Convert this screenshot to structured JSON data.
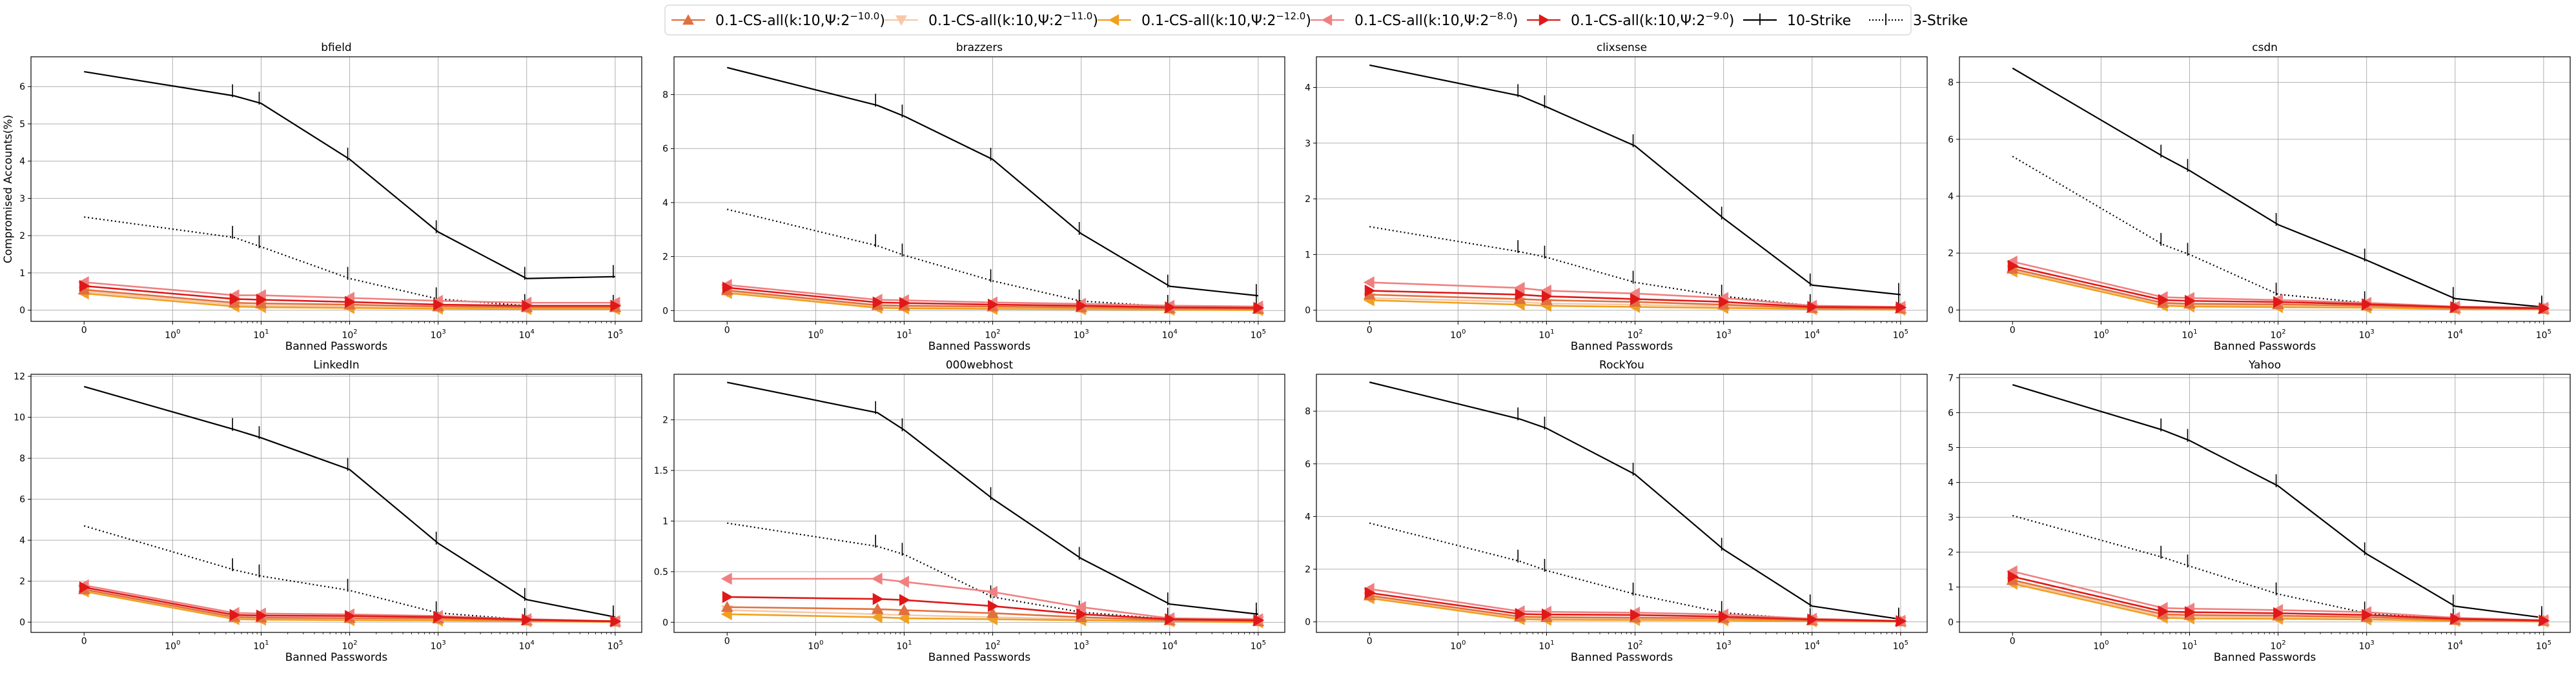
{
  "colors": {
    "cs_m10": "#e07040",
    "cs_m11": "#f7c8a8",
    "cs_m12": "#f0a020",
    "cs_m8": "#f08080",
    "cs_m9": "#e01818",
    "ten_strike": "#000000",
    "three_strike": "#000000",
    "grid": "#b0b0b0"
  },
  "legend": [
    {
      "key": "cs_m10",
      "label_pre": "0.1-CS-all(k:10,Ψ:2",
      "exp": "−10.0",
      "label_post": ")",
      "marker": "triangle-up",
      "line": "solid"
    },
    {
      "key": "cs_m11",
      "label_pre": "0.1-CS-all(k:10,Ψ:2",
      "exp": "−11.0",
      "label_post": ")",
      "marker": "triangle-down",
      "line": "solid"
    },
    {
      "key": "cs_m12",
      "label_pre": "0.1-CS-all(k:10,Ψ:2",
      "exp": "−12.0",
      "label_post": ")",
      "marker": "triangle-left",
      "line": "solid"
    },
    {
      "key": "cs_m8",
      "label_pre": "0.1-CS-all(k:10,Ψ:2",
      "exp": "−8.0",
      "label_post": ")",
      "marker": "triangle-left",
      "line": "solid"
    },
    {
      "key": "cs_m9",
      "label_pre": "0.1-CS-all(k:10,Ψ:2",
      "exp": "−9.0",
      "label_post": ")",
      "marker": "triangle-right",
      "line": "solid"
    },
    {
      "key": "ten_strike",
      "label_pre": "10-Strike",
      "exp": "",
      "label_post": "",
      "marker": "errbar",
      "line": "solid"
    },
    {
      "key": "three_strike",
      "label_pre": "3-Strike",
      "exp": "",
      "label_post": "",
      "marker": "errbar",
      "line": "dotted"
    }
  ],
  "chart_data": [
    {
      "type": "line",
      "title": "bfield",
      "xlabel": "Banned Passwords",
      "ylabel": "Compromised Accounts(%)",
      "xscale": "symlog",
      "x": [
        0,
        5,
        10,
        100,
        1000,
        10000,
        100000
      ],
      "ylim": [
        -0.3,
        6.8
      ],
      "yticks": [
        0,
        1,
        2,
        3,
        4,
        5,
        6
      ],
      "series": [
        {
          "key": "ten_strike",
          "values": [
            6.4,
            5.75,
            5.55,
            4.05,
            2.1,
            0.85,
            0.9
          ]
        },
        {
          "key": "three_strike",
          "values": [
            2.5,
            1.95,
            1.7,
            0.85,
            0.3,
            0.12,
            0.1
          ]
        },
        {
          "key": "cs_m8",
          "values": [
            0.75,
            0.4,
            0.4,
            0.33,
            0.25,
            0.2,
            0.2
          ]
        },
        {
          "key": "cs_m9",
          "values": [
            0.65,
            0.3,
            0.28,
            0.22,
            0.15,
            0.12,
            0.12
          ]
        },
        {
          "key": "cs_m10",
          "values": [
            0.55,
            0.2,
            0.18,
            0.15,
            0.1,
            0.08,
            0.08
          ]
        },
        {
          "key": "cs_m11",
          "values": [
            0.5,
            0.15,
            0.12,
            0.1,
            0.07,
            0.05,
            0.05
          ]
        },
        {
          "key": "cs_m12",
          "values": [
            0.45,
            0.1,
            0.08,
            0.06,
            0.04,
            0.03,
            0.03
          ]
        }
      ]
    },
    {
      "type": "line",
      "title": "brazzers",
      "xlabel": "Banned Passwords",
      "ylabel": "",
      "xscale": "symlog",
      "x": [
        0,
        5,
        10,
        100,
        1000,
        10000,
        100000
      ],
      "ylim": [
        -0.4,
        9.4
      ],
      "yticks": [
        0,
        2,
        4,
        6,
        8
      ],
      "series": [
        {
          "key": "ten_strike",
          "values": [
            9.0,
            7.6,
            7.2,
            5.6,
            2.85,
            0.9,
            0.55
          ]
        },
        {
          "key": "three_strike",
          "values": [
            3.75,
            2.4,
            2.05,
            1.1,
            0.35,
            0.15,
            0.1
          ]
        },
        {
          "key": "cs_m8",
          "values": [
            0.95,
            0.4,
            0.38,
            0.3,
            0.25,
            0.18,
            0.15
          ]
        },
        {
          "key": "cs_m9",
          "values": [
            0.85,
            0.3,
            0.28,
            0.22,
            0.18,
            0.12,
            0.1
          ]
        },
        {
          "key": "cs_m10",
          "values": [
            0.75,
            0.2,
            0.18,
            0.15,
            0.12,
            0.08,
            0.06
          ]
        },
        {
          "key": "cs_m11",
          "values": [
            0.7,
            0.15,
            0.12,
            0.1,
            0.08,
            0.05,
            0.04
          ]
        },
        {
          "key": "cs_m12",
          "values": [
            0.65,
            0.1,
            0.08,
            0.06,
            0.05,
            0.03,
            0.02
          ]
        }
      ]
    },
    {
      "type": "line",
      "title": "clixsense",
      "xlabel": "Banned Passwords",
      "ylabel": "",
      "xscale": "symlog",
      "x": [
        0,
        5,
        10,
        100,
        1000,
        10000,
        100000
      ],
      "ylim": [
        -0.2,
        4.55
      ],
      "yticks": [
        0,
        1,
        2,
        3,
        4
      ],
      "series": [
        {
          "key": "ten_strike",
          "values": [
            4.4,
            3.85,
            3.65,
            2.95,
            1.65,
            0.45,
            0.28
          ]
        },
        {
          "key": "three_strike",
          "values": [
            1.5,
            1.05,
            0.95,
            0.5,
            0.25,
            0.08,
            0.05
          ]
        },
        {
          "key": "cs_m8",
          "values": [
            0.5,
            0.4,
            0.35,
            0.3,
            0.22,
            0.08,
            0.06
          ]
        },
        {
          "key": "cs_m9",
          "values": [
            0.35,
            0.28,
            0.25,
            0.2,
            0.15,
            0.06,
            0.05
          ]
        },
        {
          "key": "cs_m10",
          "values": [
            0.28,
            0.2,
            0.18,
            0.15,
            0.1,
            0.04,
            0.03
          ]
        },
        {
          "key": "cs_m11",
          "values": [
            0.22,
            0.15,
            0.12,
            0.1,
            0.07,
            0.03,
            0.02
          ]
        },
        {
          "key": "cs_m12",
          "values": [
            0.18,
            0.1,
            0.08,
            0.06,
            0.04,
            0.02,
            0.01
          ]
        }
      ]
    },
    {
      "type": "line",
      "title": "csdn",
      "xlabel": "Banned Passwords",
      "ylabel": "",
      "xscale": "symlog",
      "x": [
        0,
        5,
        10,
        100,
        1000,
        10000,
        100000
      ],
      "ylim": [
        -0.4,
        8.9
      ],
      "yticks": [
        0,
        2,
        4,
        6,
        8
      ],
      "series": [
        {
          "key": "ten_strike",
          "values": [
            8.5,
            5.4,
            4.9,
            3.0,
            1.75,
            0.4,
            0.1
          ]
        },
        {
          "key": "three_strike",
          "values": [
            5.4,
            2.3,
            1.95,
            0.55,
            0.25,
            0.08,
            0.05
          ]
        },
        {
          "key": "cs_m8",
          "values": [
            1.7,
            0.45,
            0.42,
            0.35,
            0.25,
            0.12,
            0.08
          ]
        },
        {
          "key": "cs_m9",
          "values": [
            1.55,
            0.35,
            0.32,
            0.28,
            0.2,
            0.1,
            0.06
          ]
        },
        {
          "key": "cs_m10",
          "values": [
            1.45,
            0.25,
            0.22,
            0.2,
            0.15,
            0.07,
            0.04
          ]
        },
        {
          "key": "cs_m11",
          "values": [
            1.4,
            0.2,
            0.18,
            0.15,
            0.1,
            0.05,
            0.03
          ]
        },
        {
          "key": "cs_m12",
          "values": [
            1.35,
            0.15,
            0.12,
            0.1,
            0.08,
            0.03,
            0.02
          ]
        }
      ]
    },
    {
      "type": "line",
      "title": "LinkedIn",
      "xlabel": "Banned Passwords",
      "ylabel": "",
      "xscale": "symlog",
      "x": [
        0,
        5,
        10,
        100,
        1000,
        10000,
        100000
      ],
      "ylim": [
        -0.5,
        12.1
      ],
      "yticks": [
        0,
        2,
        4,
        6,
        8,
        10,
        12
      ],
      "series": [
        {
          "key": "ten_strike",
          "values": [
            11.5,
            9.4,
            9.0,
            7.45,
            3.85,
            1.1,
            0.25
          ]
        },
        {
          "key": "three_strike",
          "values": [
            4.7,
            2.55,
            2.25,
            1.55,
            0.45,
            0.12,
            0.05
          ]
        },
        {
          "key": "cs_m8",
          "values": [
            1.8,
            0.45,
            0.42,
            0.38,
            0.3,
            0.15,
            0.05
          ]
        },
        {
          "key": "cs_m9",
          "values": [
            1.7,
            0.35,
            0.32,
            0.3,
            0.25,
            0.12,
            0.04
          ]
        },
        {
          "key": "cs_m10",
          "values": [
            1.6,
            0.25,
            0.22,
            0.2,
            0.18,
            0.08,
            0.03
          ]
        },
        {
          "key": "cs_m11",
          "values": [
            1.55,
            0.2,
            0.18,
            0.15,
            0.12,
            0.06,
            0.02
          ]
        },
        {
          "key": "cs_m12",
          "values": [
            1.5,
            0.15,
            0.12,
            0.1,
            0.08,
            0.04,
            0.01
          ]
        }
      ]
    },
    {
      "type": "line",
      "title": "000webhost",
      "xlabel": "Banned Passwords",
      "ylabel": "",
      "xscale": "symlog",
      "x": [
        0,
        5,
        10,
        100,
        1000,
        10000,
        100000
      ],
      "ylim": [
        -0.1,
        2.45
      ],
      "yticks": [
        0,
        0.5,
        1.0,
        1.5,
        2.0
      ],
      "series": [
        {
          "key": "ten_strike",
          "values": [
            2.37,
            2.07,
            1.9,
            1.22,
            0.63,
            0.18,
            0.08
          ]
        },
        {
          "key": "three_strike",
          "values": [
            0.98,
            0.75,
            0.67,
            0.25,
            0.1,
            0.03,
            0.02
          ]
        },
        {
          "key": "cs_m8",
          "values": [
            0.43,
            0.43,
            0.4,
            0.3,
            0.15,
            0.04,
            0.03
          ]
        },
        {
          "key": "cs_m9",
          "values": [
            0.25,
            0.23,
            0.22,
            0.16,
            0.08,
            0.03,
            0.02
          ]
        },
        {
          "key": "cs_m10",
          "values": [
            0.15,
            0.13,
            0.12,
            0.09,
            0.05,
            0.02,
            0.01
          ]
        },
        {
          "key": "cs_m11",
          "values": [
            0.12,
            0.08,
            0.07,
            0.05,
            0.03,
            0.01,
            0.01
          ]
        },
        {
          "key": "cs_m12",
          "values": [
            0.08,
            0.05,
            0.04,
            0.03,
            0.02,
            0.01,
            0.0
          ]
        }
      ]
    },
    {
      "type": "line",
      "title": "RockYou",
      "xlabel": "Banned Passwords",
      "ylabel": "",
      "xscale": "symlog",
      "x": [
        0,
        5,
        10,
        100,
        1000,
        10000,
        100000
      ],
      "ylim": [
        -0.4,
        9.4
      ],
      "yticks": [
        0,
        2,
        4,
        6,
        8
      ],
      "series": [
        {
          "key": "ten_strike",
          "values": [
            9.1,
            7.7,
            7.35,
            5.6,
            2.75,
            0.6,
            0.1
          ]
        },
        {
          "key": "three_strike",
          "values": [
            3.75,
            2.3,
            1.95,
            1.05,
            0.35,
            0.08,
            0.03
          ]
        },
        {
          "key": "cs_m8",
          "values": [
            1.25,
            0.4,
            0.38,
            0.35,
            0.28,
            0.12,
            0.04
          ]
        },
        {
          "key": "cs_m9",
          "values": [
            1.1,
            0.3,
            0.28,
            0.26,
            0.2,
            0.09,
            0.03
          ]
        },
        {
          "key": "cs_m10",
          "values": [
            1.0,
            0.2,
            0.18,
            0.16,
            0.14,
            0.06,
            0.02
          ]
        },
        {
          "key": "cs_m11",
          "values": [
            0.95,
            0.15,
            0.13,
            0.12,
            0.1,
            0.04,
            0.01
          ]
        },
        {
          "key": "cs_m12",
          "values": [
            0.9,
            0.1,
            0.08,
            0.07,
            0.06,
            0.02,
            0.01
          ]
        }
      ]
    },
    {
      "type": "line",
      "title": "Yahoo",
      "xlabel": "Banned Passwords",
      "ylabel": "",
      "xscale": "symlog",
      "x": [
        0,
        5,
        10,
        100,
        1000,
        10000,
        100000
      ],
      "ylim": [
        -0.3,
        7.1
      ],
      "yticks": [
        0,
        1,
        2,
        3,
        4,
        5,
        6,
        7
      ],
      "series": [
        {
          "key": "ten_strike",
          "values": [
            6.8,
            5.5,
            5.2,
            3.9,
            1.95,
            0.45,
            0.12
          ]
        },
        {
          "key": "three_strike",
          "values": [
            3.05,
            1.85,
            1.6,
            0.8,
            0.25,
            0.06,
            0.03
          ]
        },
        {
          "key": "cs_m8",
          "values": [
            1.45,
            0.4,
            0.38,
            0.34,
            0.28,
            0.12,
            0.05
          ]
        },
        {
          "key": "cs_m9",
          "values": [
            1.3,
            0.3,
            0.28,
            0.25,
            0.2,
            0.09,
            0.04
          ]
        },
        {
          "key": "cs_m10",
          "values": [
            1.2,
            0.22,
            0.2,
            0.18,
            0.14,
            0.06,
            0.03
          ]
        },
        {
          "key": "cs_m11",
          "values": [
            1.15,
            0.17,
            0.15,
            0.13,
            0.1,
            0.04,
            0.02
          ]
        },
        {
          "key": "cs_m12",
          "values": [
            1.1,
            0.12,
            0.1,
            0.09,
            0.07,
            0.03,
            0.01
          ]
        }
      ]
    }
  ]
}
